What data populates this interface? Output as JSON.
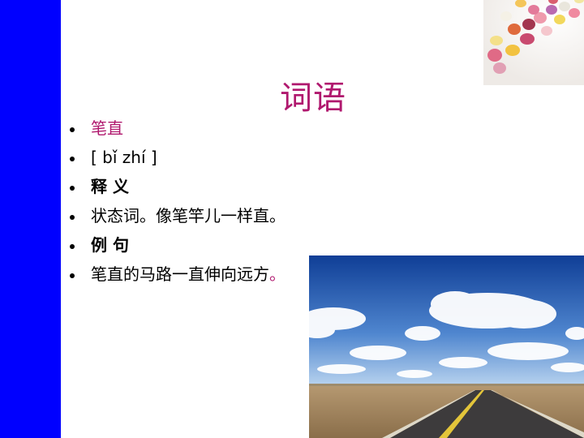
{
  "slide": {
    "title": "词语",
    "bullets": [
      {
        "text": "笔直"
      },
      {
        "text": "[ bǐ zhí ]"
      },
      {
        "text": "释 义"
      },
      {
        "text": "状态词。像笔竿儿一样直。"
      },
      {
        "text": "例 句"
      },
      {
        "text": "笔直的马路一直伸向远方",
        "trailing": "。"
      }
    ]
  },
  "colors": {
    "accent": "#b0186e",
    "left_bar": "#0000ff",
    "text": "#000000"
  },
  "images": {
    "top_right": "candy-beans-photo",
    "bottom_right": "straight-road-sky-photo"
  }
}
